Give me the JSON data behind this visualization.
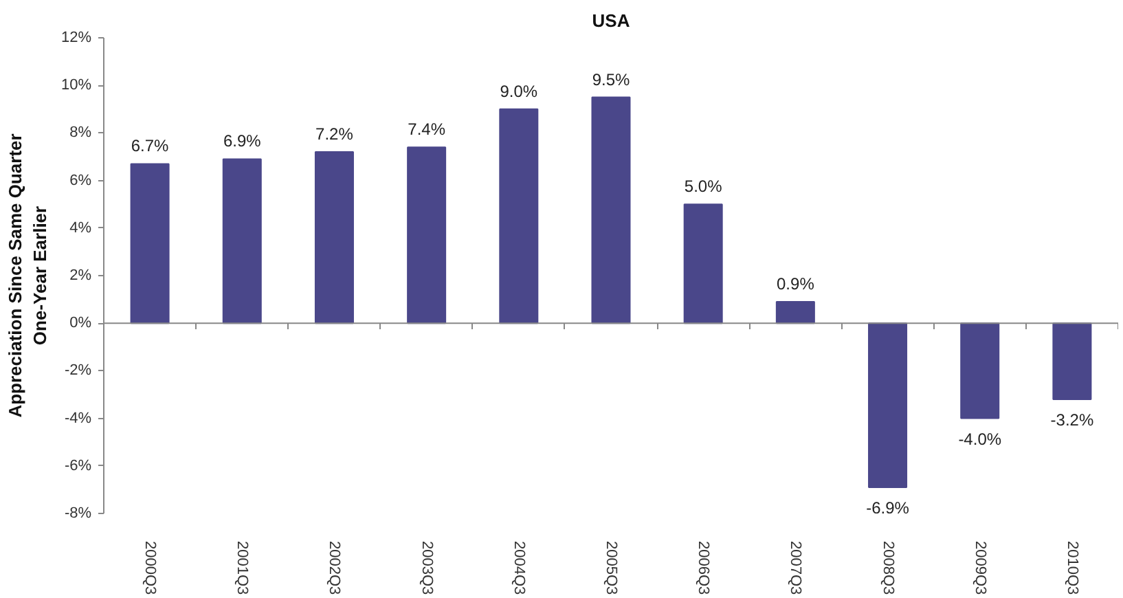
{
  "chart_data": {
    "type": "bar",
    "title": "USA",
    "ylabel": "Appreciation Since Same Quarter\nOne-Year Earlier",
    "categories": [
      "2000Q3",
      "2001Q3",
      "2002Q3",
      "2003Q3",
      "2004Q3",
      "2005Q3",
      "2006Q3",
      "2007Q3",
      "2008Q3",
      "2009Q3",
      "2010Q3"
    ],
    "values": [
      6.7,
      6.9,
      7.2,
      7.4,
      9.0,
      9.5,
      5.0,
      0.9,
      -6.9,
      -4.0,
      -3.2
    ],
    "value_labels": [
      "6.7%",
      "6.9%",
      "7.2%",
      "7.4%",
      "9.0%",
      "9.5%",
      "5.0%",
      "0.9%",
      "-6.9%",
      "-4.0%",
      "-3.2%"
    ],
    "color": "#4a478a",
    "ylim": [
      -8,
      12
    ],
    "yticks": [
      {
        "value": -8,
        "label": "-8%"
      },
      {
        "value": -6,
        "label": "-6%"
      },
      {
        "value": -4,
        "label": "-4%"
      },
      {
        "value": -2,
        "label": "-2%"
      },
      {
        "value": 0,
        "label": "0%"
      },
      {
        "value": 2,
        "label": "2%"
      },
      {
        "value": 4,
        "label": "4%"
      },
      {
        "value": 6,
        "label": "6%"
      },
      {
        "value": 8,
        "label": "8%"
      },
      {
        "value": 10,
        "label": "10%"
      },
      {
        "value": 12,
        "label": "12%"
      }
    ],
    "ref_lines": [
      {
        "axis": "y",
        "value": 0,
        "color": "#888888"
      }
    ],
    "grid": false
  }
}
